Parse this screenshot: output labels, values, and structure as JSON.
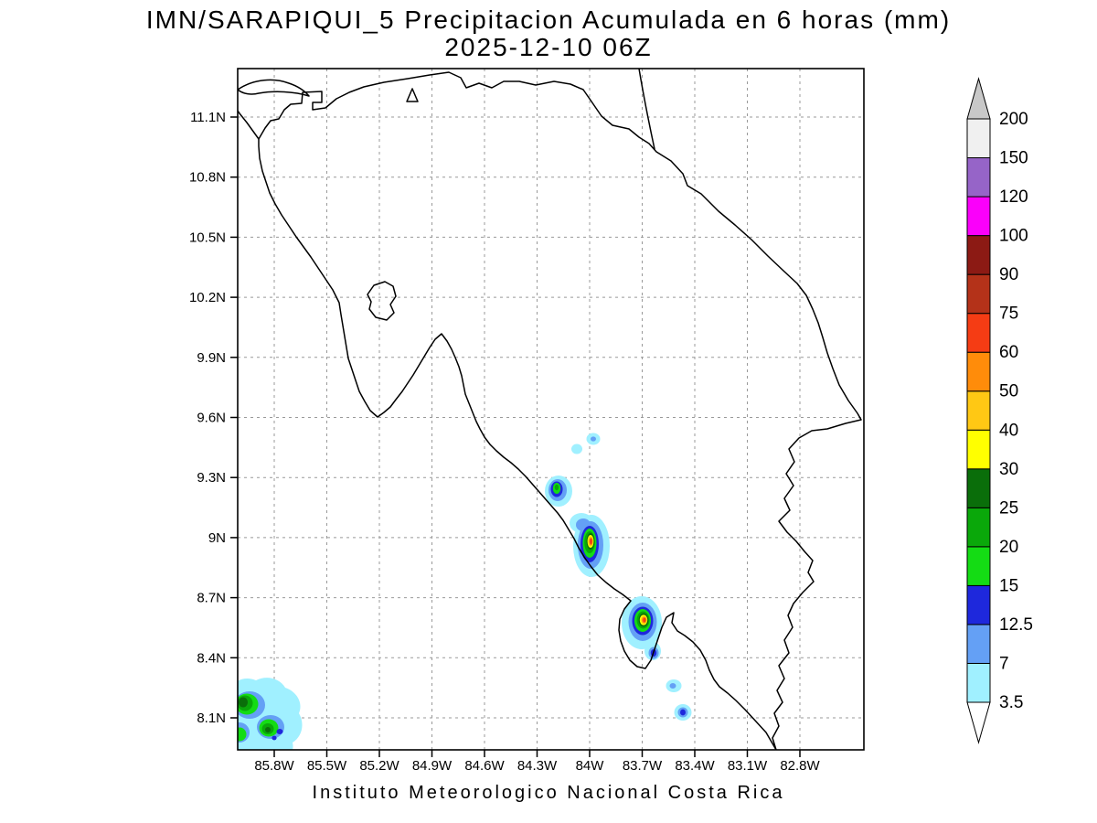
{
  "title": {
    "line1": "IMN/SARAPIQUI_5 Precipitacion Acumulada en 6 horas (mm)",
    "line2": "2025-12-10 06Z"
  },
  "footer": "Instituto Meteorologico Nacional Costa Rica",
  "chart_data": {
    "type": "heatmap",
    "title": "IMN/SARAPIQUI_5 Precipitacion Acumulada en 6 horas (mm)",
    "subtitle": "2025-12-10 06Z",
    "region": "Costa Rica",
    "unit": "mm",
    "grid": "dashed",
    "x_axis": {
      "ticks": [
        "85.8W",
        "85.5W",
        "85.2W",
        "84.9W",
        "84.6W",
        "84.3W",
        "84W",
        "83.7W",
        "83.4W",
        "83.1W",
        "82.8W"
      ]
    },
    "y_axis": {
      "ticks": [
        "11.1N",
        "10.8N",
        "10.5N",
        "10.2N",
        "9.9N",
        "9.6N",
        "9.3N",
        "9N",
        "8.7N",
        "8.4N",
        "8.1N"
      ]
    },
    "colorbar": {
      "position": "right",
      "levels": [
        "3.5",
        "7",
        "12.5",
        "15",
        "20",
        "25",
        "30",
        "40",
        "50",
        "60",
        "75",
        "90",
        "100",
        "120",
        "150",
        "200"
      ],
      "colors_low_to_high": [
        "#A0F0FF",
        "#64A0F5",
        "#1E28DC",
        "#14DC14",
        "#0AA80A",
        "#0A6E0A",
        "#FFFF00",
        "#FFC814",
        "#FF8C0A",
        "#F53C14",
        "#B43219",
        "#8C1A14",
        "#FA00FA",
        "#9664C8",
        "#F0F0F0"
      ],
      "below_min_color": "#FFFFFF",
      "above_max_color": "#C8C8C8"
    },
    "features": [
      {
        "name": "cell-central-pacific-north",
        "lon": "84.2W",
        "lat": "9.25N",
        "peak_range_mm": "20-25"
      },
      {
        "name": "small-spots-north-of-cell",
        "lon": "84.05W",
        "lat": "9.47N",
        "peak_range_mm": "3.5-7"
      },
      {
        "name": "cell-central-pacific-main",
        "lon": "84.0W",
        "lat": "8.97N",
        "peak_range_mm": "60-75"
      },
      {
        "name": "cell-osa-peninsula",
        "lon": "83.7W",
        "lat": "8.58N",
        "peak_range_mm": "60-75"
      },
      {
        "name": "spot-golfo-dulce",
        "lon": "83.63W",
        "lat": "8.42N",
        "peak_range_mm": "12.5-15"
      },
      {
        "name": "spot-south-coast-1",
        "lon": "83.53W",
        "lat": "8.26N",
        "peak_range_mm": "3.5-7"
      },
      {
        "name": "spot-south-coast-2",
        "lon": "83.47W",
        "lat": "8.13N",
        "peak_range_mm": "12.5-15"
      },
      {
        "name": "cell-southwest-offshore",
        "lon": "85.9W",
        "lat": "8.18N",
        "peak_range_mm": "25-30"
      }
    ]
  }
}
